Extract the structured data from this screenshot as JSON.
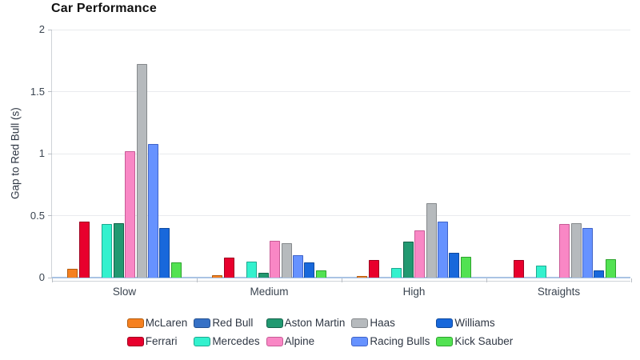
{
  "chart_data": {
    "type": "bar",
    "title": "Car Performance",
    "xlabel": "",
    "ylabel": "Gap to Red Bull (s)",
    "categories": [
      "Slow",
      "Medium",
      "High",
      "Straights"
    ],
    "series": [
      {
        "name": "McLaren",
        "color": "#F58020",
        "border": "#b35c0e",
        "values": [
          0.07,
          0.02,
          0.01,
          0
        ]
      },
      {
        "name": "Ferrari",
        "color": "#E8002D",
        "border": "#9e0020",
        "values": [
          0.45,
          0.16,
          0.14,
          0.14
        ]
      },
      {
        "name": "Red Bull",
        "color": "#3671C6",
        "border": "#24508f",
        "values": [
          0,
          0,
          0,
          0
        ]
      },
      {
        "name": "Mercedes",
        "color": "#33F1CE",
        "border": "#1da88f",
        "values": [
          0.43,
          0.13,
          0.08,
          0.1
        ]
      },
      {
        "name": "Aston Martin",
        "color": "#229971",
        "border": "#14624a",
        "values": [
          0.44,
          0.04,
          0.29,
          0
        ]
      },
      {
        "name": "Alpine",
        "color": "#F987C5",
        "border": "#c75b96",
        "values": [
          1.02,
          0.3,
          0.38,
          0.43
        ]
      },
      {
        "name": "Haas",
        "color": "#B6BABD",
        "border": "#85898c",
        "values": [
          1.72,
          0.28,
          0.6,
          0.44
        ]
      },
      {
        "name": "Racing Bulls",
        "color": "#6692FF",
        "border": "#3f63c9",
        "values": [
          1.08,
          0.18,
          0.45,
          0.4
        ]
      },
      {
        "name": "Williams",
        "color": "#1868DB",
        "border": "#0f4a9e",
        "values": [
          0.4,
          0.12,
          0.2,
          0.06
        ]
      },
      {
        "name": "Kick Sauber",
        "color": "#52E252",
        "border": "#2da32d",
        "values": [
          0.12,
          0.06,
          0.17,
          0.15
        ]
      }
    ],
    "ylim": [
      0,
      2
    ],
    "yticks": [
      0,
      0.5,
      1,
      1.5,
      2
    ],
    "grid": true,
    "legend_position": "bottom",
    "legend_rows": 2
  }
}
